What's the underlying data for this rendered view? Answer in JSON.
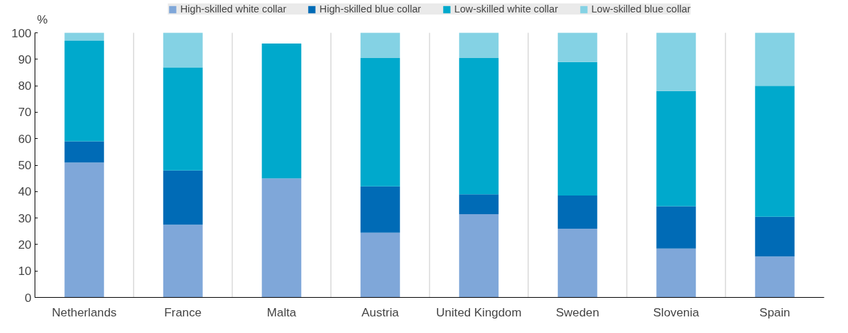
{
  "chart_data": {
    "type": "bar",
    "stacked": true,
    "ylabel": "%",
    "categories": [
      "Netherlands",
      "France",
      "Malta",
      "Austria",
      "United Kingdom",
      "Sweden",
      "Slovenia",
      "Spain"
    ],
    "series": [
      {
        "name": "High-skilled white collar",
        "color": "#7fa7d9",
        "values": [
          51,
          27.5,
          45,
          24.5,
          31.5,
          26,
          18.5,
          15.5
        ]
      },
      {
        "name": "High-skilled blue collar",
        "color": "#006bb6",
        "values": [
          8,
          20.5,
          0,
          17.5,
          7.5,
          12.5,
          16,
          15
        ]
      },
      {
        "name": "Low-skilled white collar",
        "color": "#00a9cc",
        "values": [
          38,
          39,
          51,
          48.5,
          51.5,
          50.5,
          43.5,
          49.5
        ]
      },
      {
        "name": "Low-skilled blue collar",
        "color": "#84d2e4",
        "values": [
          3,
          13,
          0,
          9.5,
          9.5,
          11,
          22,
          20
        ]
      }
    ],
    "ylim": [
      0,
      100
    ],
    "yticks": [
      0,
      10,
      20,
      30,
      40,
      50,
      60,
      70,
      80,
      90,
      100
    ],
    "grid": "x",
    "legend": "top"
  }
}
